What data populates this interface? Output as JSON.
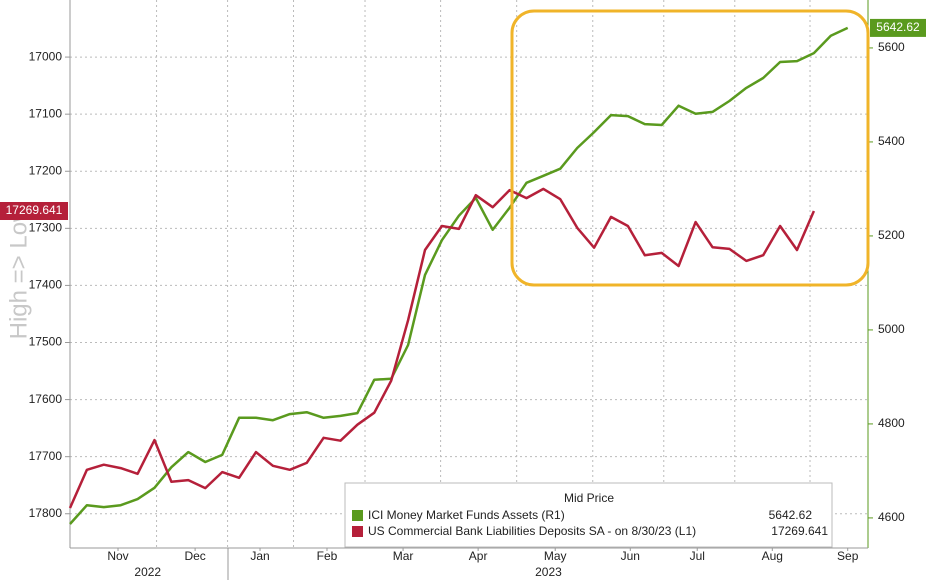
{
  "chart_data": {
    "type": "line",
    "y_axis_label": "High => Low",
    "categories": [
      null,
      null,
      null,
      null,
      null,
      null,
      null,
      null,
      null,
      null,
      null,
      null,
      null,
      null,
      null,
      null,
      null,
      null,
      null,
      null,
      null,
      null,
      null,
      null,
      null,
      null,
      null,
      null,
      null,
      null,
      null,
      null,
      null,
      null,
      null,
      null,
      null,
      null,
      null,
      null,
      null,
      null,
      null,
      null,
      null,
      null,
      null
    ],
    "xlim": [
      0,
      47.2
    ],
    "xticks": [
      {
        "value": 2.84,
        "label": "Nov"
      },
      {
        "value": 7.4,
        "label": "Dec"
      },
      {
        "value": 11.24,
        "label": "Jan"
      },
      {
        "value": 15.2,
        "label": "Feb"
      },
      {
        "value": 19.7,
        "label": "Mar"
      },
      {
        "value": 24.14,
        "label": "Apr"
      },
      {
        "value": 28.7,
        "label": "May"
      },
      {
        "value": 33.14,
        "label": "Jun"
      },
      {
        "value": 37.1,
        "label": "Jul"
      },
      {
        "value": 41.54,
        "label": "Aug"
      },
      {
        "value": 46.0,
        "label": "Sep"
      }
    ],
    "year_ticks": [
      {
        "value": 4.6,
        "label": "2022"
      },
      {
        "value": 28.3,
        "label": "2023"
      }
    ],
    "ylim": [
      16900,
      17860
    ],
    "y_inverted": true,
    "yticks": [
      17000,
      17100,
      17200,
      17300,
      17400,
      17500,
      17600,
      17700,
      17800
    ],
    "y2lim": [
      4536,
      5702
    ],
    "y2ticks": [
      4600,
      4800,
      5000,
      5200,
      5400,
      5600
    ],
    "grid": true,
    "legend": {
      "title": "Mid Price",
      "position": "bottom-right"
    },
    "series": [
      {
        "name": "ICI Money Market Funds Assets  (R1)",
        "color": "#5a9a1e",
        "axis": "y2",
        "legend_value": "5642.62",
        "last_label": "5642.62",
        "values": [
          4587,
          4627,
          4623,
          4627,
          4640,
          4664,
          4708,
          4740,
          4719,
          4734,
          4813,
          4813,
          4808,
          4821,
          4825,
          4813,
          4817,
          4823,
          4894,
          4896,
          4968,
          5117,
          5191,
          5243,
          5281,
          5213,
          5260,
          5313,
          5328,
          5343,
          5387,
          5421,
          5457,
          5455,
          5438,
          5436,
          5477,
          5460,
          5464,
          5487,
          5515,
          5536,
          5570,
          5572,
          5589,
          5626,
          5642.62
        ]
      },
      {
        "name": "US Commercial Bank Liabilities Deposits SA -   on 8/30/23  (L1)",
        "color": "#b5203a",
        "axis": "y",
        "legend_value": "17269.641",
        "last_label": "17269.641",
        "values": [
          17790,
          17723,
          17714,
          17720,
          17730,
          17671,
          17744,
          17741,
          17755,
          17727,
          17737,
          17692,
          17716,
          17723,
          17711,
          17667,
          17672,
          17644,
          17623,
          17567,
          17461,
          17338,
          17296,
          17301,
          17242,
          17263,
          17233,
          17247,
          17231,
          17249,
          17299,
          17334,
          17280,
          17296,
          17347,
          17343,
          17366,
          17289,
          17333,
          17336,
          17357,
          17347,
          17296,
          17338,
          17269.641,
          null,
          null
        ]
      }
    ]
  }
}
